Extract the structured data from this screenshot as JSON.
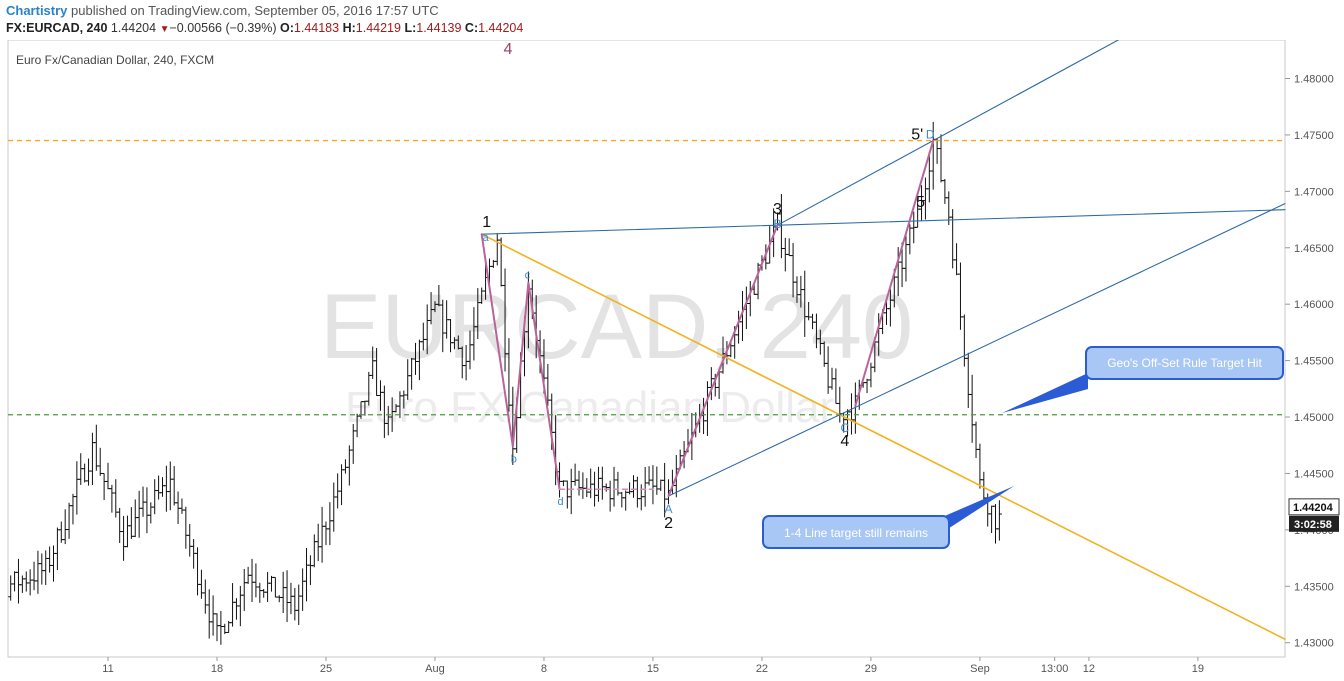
{
  "header": {
    "brand": "Chartistry",
    "published": "published on TradingView.com, September 05, 2016 17:57 UTC",
    "symbol": "FX:EURCAD, 240",
    "last": "1.44204",
    "change": "−0.00566 (−0.39%)",
    "open_label": "O:",
    "open": "1.44183",
    "high_label": "H:",
    "high": "1.44219",
    "low_label": "L:",
    "low": "1.44139",
    "close_label": "C:",
    "close": "1.44204"
  },
  "chart_data": {
    "type": "candlestick",
    "title": "Euro Fx/Canadian Dollar, 240, FXCM",
    "watermark_symbol": "EURCAD, 240",
    "watermark_name": "Euro FX/Canadian Dollar",
    "x_ticks": [
      "11",
      "18",
      "25",
      "Aug",
      "8",
      "15",
      "22",
      "29",
      "Sep",
      "13:00",
      "12",
      "19"
    ],
    "y_ticks": [
      "1.48000",
      "1.47500",
      "1.47000",
      "1.46500",
      "1.46000",
      "1.45500",
      "1.45000",
      "1.44500",
      "1.44000",
      "1.43500",
      "1.43000"
    ],
    "ylim": [
      1.4295,
      1.4822
    ],
    "last_price": "1.44204",
    "countdown": "3:02:58",
    "horizontal_levels": [
      {
        "price": 1.4745,
        "color": "#f7a823",
        "style": "dashed"
      },
      {
        "price": 1.4502,
        "color": "#4c9a3f",
        "style": "dashed"
      }
    ],
    "anchors": [
      {
        "date": "Jul 27",
        "price": 1.4682
      },
      {
        "date": "Aug 4",
        "price": 1.4662
      },
      {
        "date": "Aug 6",
        "price": 1.4474
      },
      {
        "date": "Aug 7",
        "price": 1.4619
      },
      {
        "date": "Aug 9",
        "price": 1.4436
      },
      {
        "date": "Aug 15",
        "price": 1.4436
      },
      {
        "date": "Aug 16",
        "price": 1.443
      },
      {
        "date": "Aug 23",
        "price": 1.467
      },
      {
        "date": "Aug 27",
        "price": 1.4502
      },
      {
        "date": "Aug 28",
        "price": 1.451
      },
      {
        "date": "Sep 1",
        "price": 1.468
      },
      {
        "date": "Sep 2",
        "price": 1.4745
      },
      {
        "date": "Sep 3",
        "price": 1.468
      },
      {
        "date": "Sep 5",
        "price": 1.444
      },
      {
        "date": "Sep 6",
        "price": 1.441
      }
    ],
    "wave_labels": [
      "4",
      "1",
      "2",
      "3",
      "4",
      "5",
      "5'"
    ],
    "pattern_labels": [
      "a",
      "b",
      "c",
      "d",
      "A",
      "B",
      "C",
      "D"
    ],
    "callouts": [
      "Geo's Off-Set Rule Target Hit",
      "1-4 Line target still remains"
    ]
  }
}
